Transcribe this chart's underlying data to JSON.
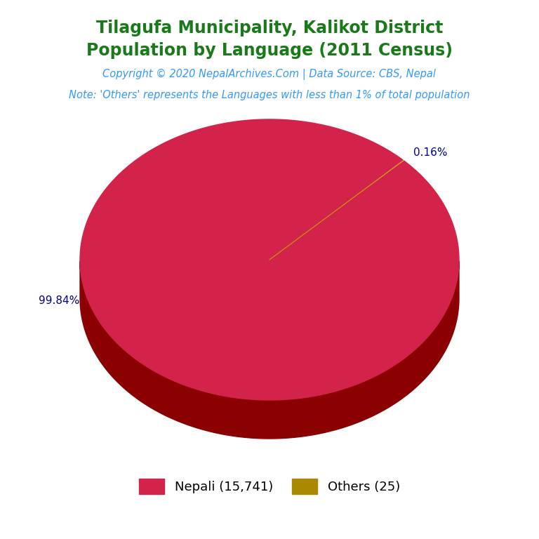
{
  "title_line1": "Tilagufa Municipality, Kalikot District",
  "title_line2": "Population by Language (2011 Census)",
  "copyright": "Copyright © 2020 NepalArchives.Com | Data Source: CBS, Nepal",
  "note": "Note: 'Others' represents the Languages with less than 1% of total population",
  "slices": [
    {
      "label": "Nepali (15,741)",
      "value": 15741,
      "pct": 99.84,
      "color": "#d4234a"
    },
    {
      "label": "Others (25)",
      "value": 25,
      "pct": 0.16,
      "color": "#aa8800"
    }
  ],
  "title_color": "#1a7a1a",
  "copyright_color": "#3399ff",
  "note_color": "#3399ff",
  "label_color": "#00008B",
  "background_color": "#ffffff",
  "side_color": "#8B0000",
  "line_color": "#cc9900"
}
